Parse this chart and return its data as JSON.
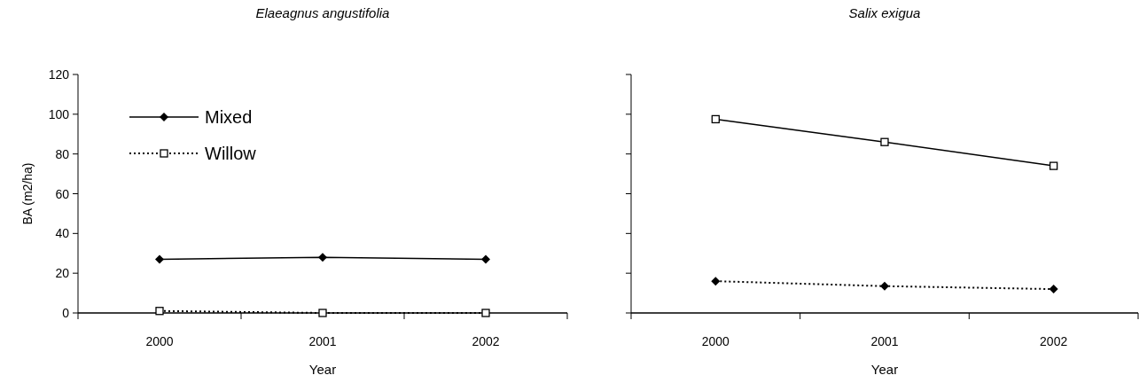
{
  "chart_data": [
    {
      "type": "line",
      "title": "Elaeagnus angustifolia",
      "xlabel": "Year",
      "ylabel": "BA (m2/ha)",
      "categories": [
        "2000",
        "2001",
        "2002"
      ],
      "ylim": [
        0,
        120
      ],
      "yticks": [
        0,
        20,
        40,
        60,
        80,
        100,
        120
      ],
      "legend": "top left",
      "series": [
        {
          "name": "Mixed",
          "color": "#000000",
          "values": [
            27,
            28,
            27
          ],
          "marker": "diamond",
          "line_style": "solid"
        },
        {
          "name": "Willow",
          "color": "#000000",
          "values": [
            1,
            0,
            0
          ],
          "marker": "square",
          "line_style": "dotted"
        }
      ]
    },
    {
      "type": "line",
      "title": "Salix exigua",
      "xlabel": "Year",
      "categories": [
        "2000",
        "2001",
        "2002"
      ],
      "ylim": [
        0,
        120
      ],
      "yticks": [
        0,
        20,
        40,
        60,
        80,
        100,
        120
      ],
      "tick_labels": "x",
      "series": [
        {
          "color": "#000000",
          "values": [
            97.5,
            86,
            74
          ],
          "marker": "square",
          "line_style": "solid"
        },
        {
          "color": "#000000",
          "values": [
            16,
            13.5,
            12
          ],
          "marker": "diamond",
          "line_style": "dotted"
        }
      ]
    }
  ]
}
